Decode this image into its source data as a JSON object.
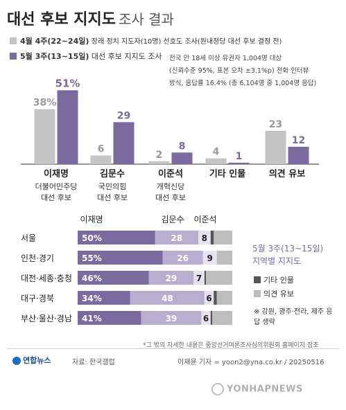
{
  "title": "대선 후보 지지도",
  "subtitle": "조사 결과",
  "legend": [
    {
      "label": "4월 4주(22~24일)",
      "desc": "장래 정치 지도자(10명) 선호도 조사(원내정당 대선 후보 결정 전)",
      "color": "#c4c4c4"
    },
    {
      "label": "5월 3주(13~15일)",
      "desc": "대선 후보 지지도 조사",
      "color": "#7a6a9e"
    }
  ],
  "method_note": [
    "전국 만 18세 이상 유권자 1,004명 대상",
    "(신뢰수준 95%, 표본 오차 ±3.1%p) 전화 인터뷰",
    "방식, 응답률 16.4% (총 6,104명 중 1,004명 응답)"
  ],
  "chart_data": [
    {
      "type": "bar",
      "categories": [
        "이재명",
        "김문수",
        "이준석",
        "기타 인물",
        "의견 유보"
      ],
      "category_sublabels": [
        [
          "더불어민주당",
          "대선 후보"
        ],
        [
          "국민의힘",
          "대선 후보"
        ],
        [
          "개혁신당",
          "대선 후보"
        ],
        [],
        []
      ],
      "series": [
        {
          "name": "4월 4주(22~24일)",
          "values": [
            38,
            6,
            2,
            4,
            23
          ],
          "color": "#c4c4c4"
        },
        {
          "name": "5월 3주(13~15일)",
          "values": [
            51,
            29,
            8,
            1,
            12
          ],
          "color": "#7a6a9e"
        }
      ],
      "value_labels": [
        [
          "38%",
          "51%"
        ],
        [
          "6",
          "29"
        ],
        [
          "2",
          "8"
        ],
        [
          "4",
          "1"
        ],
        [
          "23",
          "12"
        ]
      ],
      "ylim": [
        0,
        55
      ]
    },
    {
      "type": "bar",
      "orientation": "horizontal-stacked",
      "title": "5월 3주(13~15일)",
      "subtitle": "지역별 지지도",
      "columns": [
        "이재명",
        "김문수",
        "이준석"
      ],
      "categories": [
        "서울",
        "인천·경기",
        "대전·세종·충청",
        "대구·경북",
        "부산·울산·경남"
      ],
      "series": [
        {
          "name": "이재명",
          "values": [
            50,
            55,
            46,
            34,
            41
          ],
          "color": "#7a6a9e"
        },
        {
          "name": "김문수",
          "values": [
            28,
            26,
            29,
            48,
            39
          ],
          "color": "#b7aed0"
        },
        {
          "name": "이준석",
          "values": [
            8,
            9,
            7,
            6,
            6
          ],
          "color": "#e6e2f0"
        },
        {
          "name": "기타 인물",
          "values": [
            2,
            0,
            1,
            2,
            1
          ],
          "color": "#555555"
        },
        {
          "name": "의견 유보",
          "values": [
            12,
            10,
            17,
            10,
            13
          ],
          "color": "#bdbdbd"
        }
      ],
      "value_labels": [
        [
          "50%",
          "28",
          "8"
        ],
        [
          "55%",
          "26",
          "9"
        ],
        [
          "46%",
          "29",
          "7"
        ],
        [
          "34%",
          "48",
          "6"
        ],
        [
          "41%",
          "39",
          "6"
        ]
      ],
      "xlim": [
        0,
        100
      ],
      "legend": [
        {
          "label": "기타 인물",
          "color": "#555555"
        },
        {
          "label": "의견 유보",
          "color": "#bdbdbd"
        }
      ],
      "footnote": "※ 강원, 광주·전라, 제주 응답 생략"
    }
  ],
  "source_note": "*그 밖의 자세한 내용은 중앙선거여론조사심의위원회 홈페이지 참조",
  "footer": {
    "brand": "연합뉴스",
    "source": "자료: 한국갤럽",
    "credit": "이재윤 기자 = yoon2@yna.co.kr / 20250516",
    "watermark": "YONHAPNEWS"
  }
}
